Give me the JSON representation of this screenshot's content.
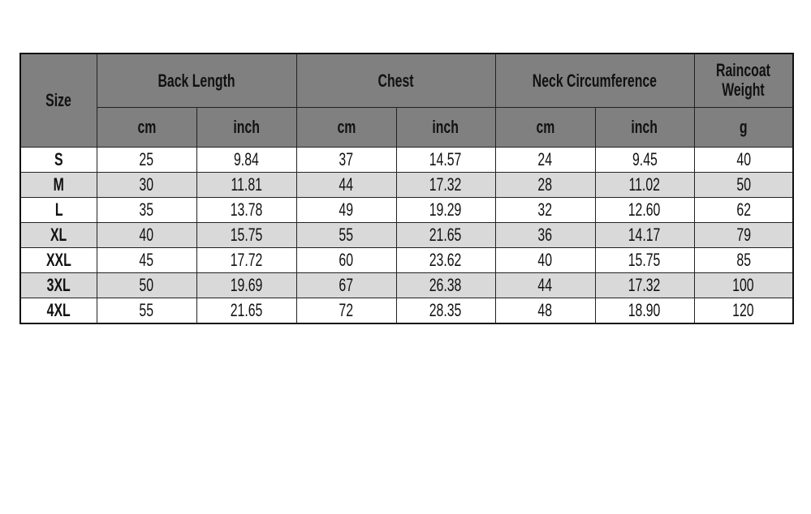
{
  "table": {
    "headers": {
      "size": "Size",
      "groups": [
        "Back Length",
        "Chest",
        "Neck Circumference"
      ],
      "weight": [
        "Raincoat",
        "Weight"
      ],
      "units": [
        "cm",
        "inch",
        "cm",
        "inch",
        "cm",
        "inch",
        "g"
      ]
    },
    "rows": [
      {
        "size": "S",
        "values": [
          "25",
          "9.84",
          "37",
          "14.57",
          "24",
          "9.45",
          "40"
        ]
      },
      {
        "size": "M",
        "values": [
          "30",
          "11.81",
          "44",
          "17.32",
          "28",
          "11.02",
          "50"
        ]
      },
      {
        "size": "L",
        "values": [
          "35",
          "13.78",
          "49",
          "19.29",
          "32",
          "12.60",
          "62"
        ]
      },
      {
        "size": "XL",
        "values": [
          "40",
          "15.75",
          "55",
          "21.65",
          "36",
          "14.17",
          "79"
        ]
      },
      {
        "size": "XXL",
        "values": [
          "45",
          "17.72",
          "60",
          "23.62",
          "40",
          "15.75",
          "85"
        ]
      },
      {
        "size": "3XL",
        "values": [
          "50",
          "19.69",
          "67",
          "26.38",
          "44",
          "17.32",
          "100"
        ]
      },
      {
        "size": "4XL",
        "values": [
          "55",
          "21.65",
          "72",
          "28.35",
          "48",
          "18.90",
          "120"
        ]
      }
    ],
    "colors": {
      "header": "#808080",
      "alt_row": "#d9d9d9",
      "row": "#ffffff"
    }
  }
}
